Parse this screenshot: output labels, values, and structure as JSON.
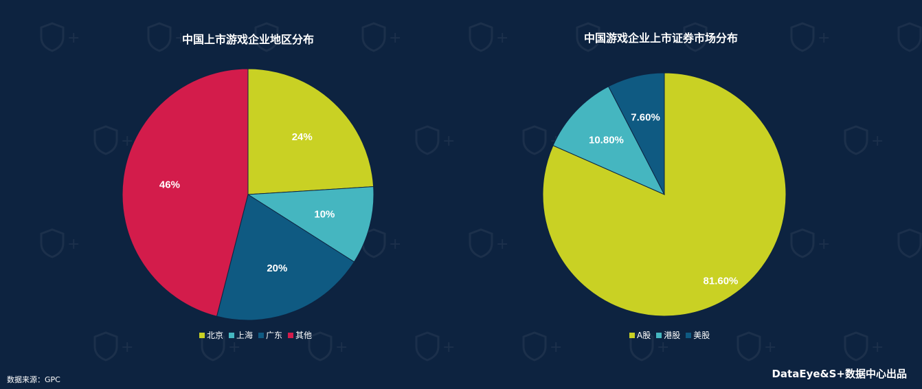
{
  "chart_data": [
    {
      "type": "pie",
      "title": "中国上市游戏企业地区分布",
      "categories": [
        "北京",
        "上海",
        "广东",
        "其他"
      ],
      "values": [
        24,
        10,
        20,
        46
      ],
      "labels": [
        "24%",
        "10%",
        "20%",
        "46%"
      ],
      "colors": [
        "#c9d124",
        "#45b6c0",
        "#0f5a82",
        "#d31c4b"
      ],
      "legend_position": "bottom"
    },
    {
      "type": "pie",
      "title": "中国游戏企业上市证券市场分布",
      "categories": [
        "A股",
        "港股",
        "美股"
      ],
      "values": [
        81.6,
        10.8,
        7.6
      ],
      "labels": [
        "81.60%",
        "10.80%",
        "7.60%"
      ],
      "colors": [
        "#c9d124",
        "#45b6c0",
        "#0f5a82"
      ],
      "legend_position": "bottom"
    }
  ],
  "footer": {
    "source": "数据来源：GPC",
    "brand": "DataEye&S+数据中心出品"
  },
  "theme": {
    "background": "#0d2340",
    "text": "#ffffff",
    "slice_border": "#0d2340"
  }
}
